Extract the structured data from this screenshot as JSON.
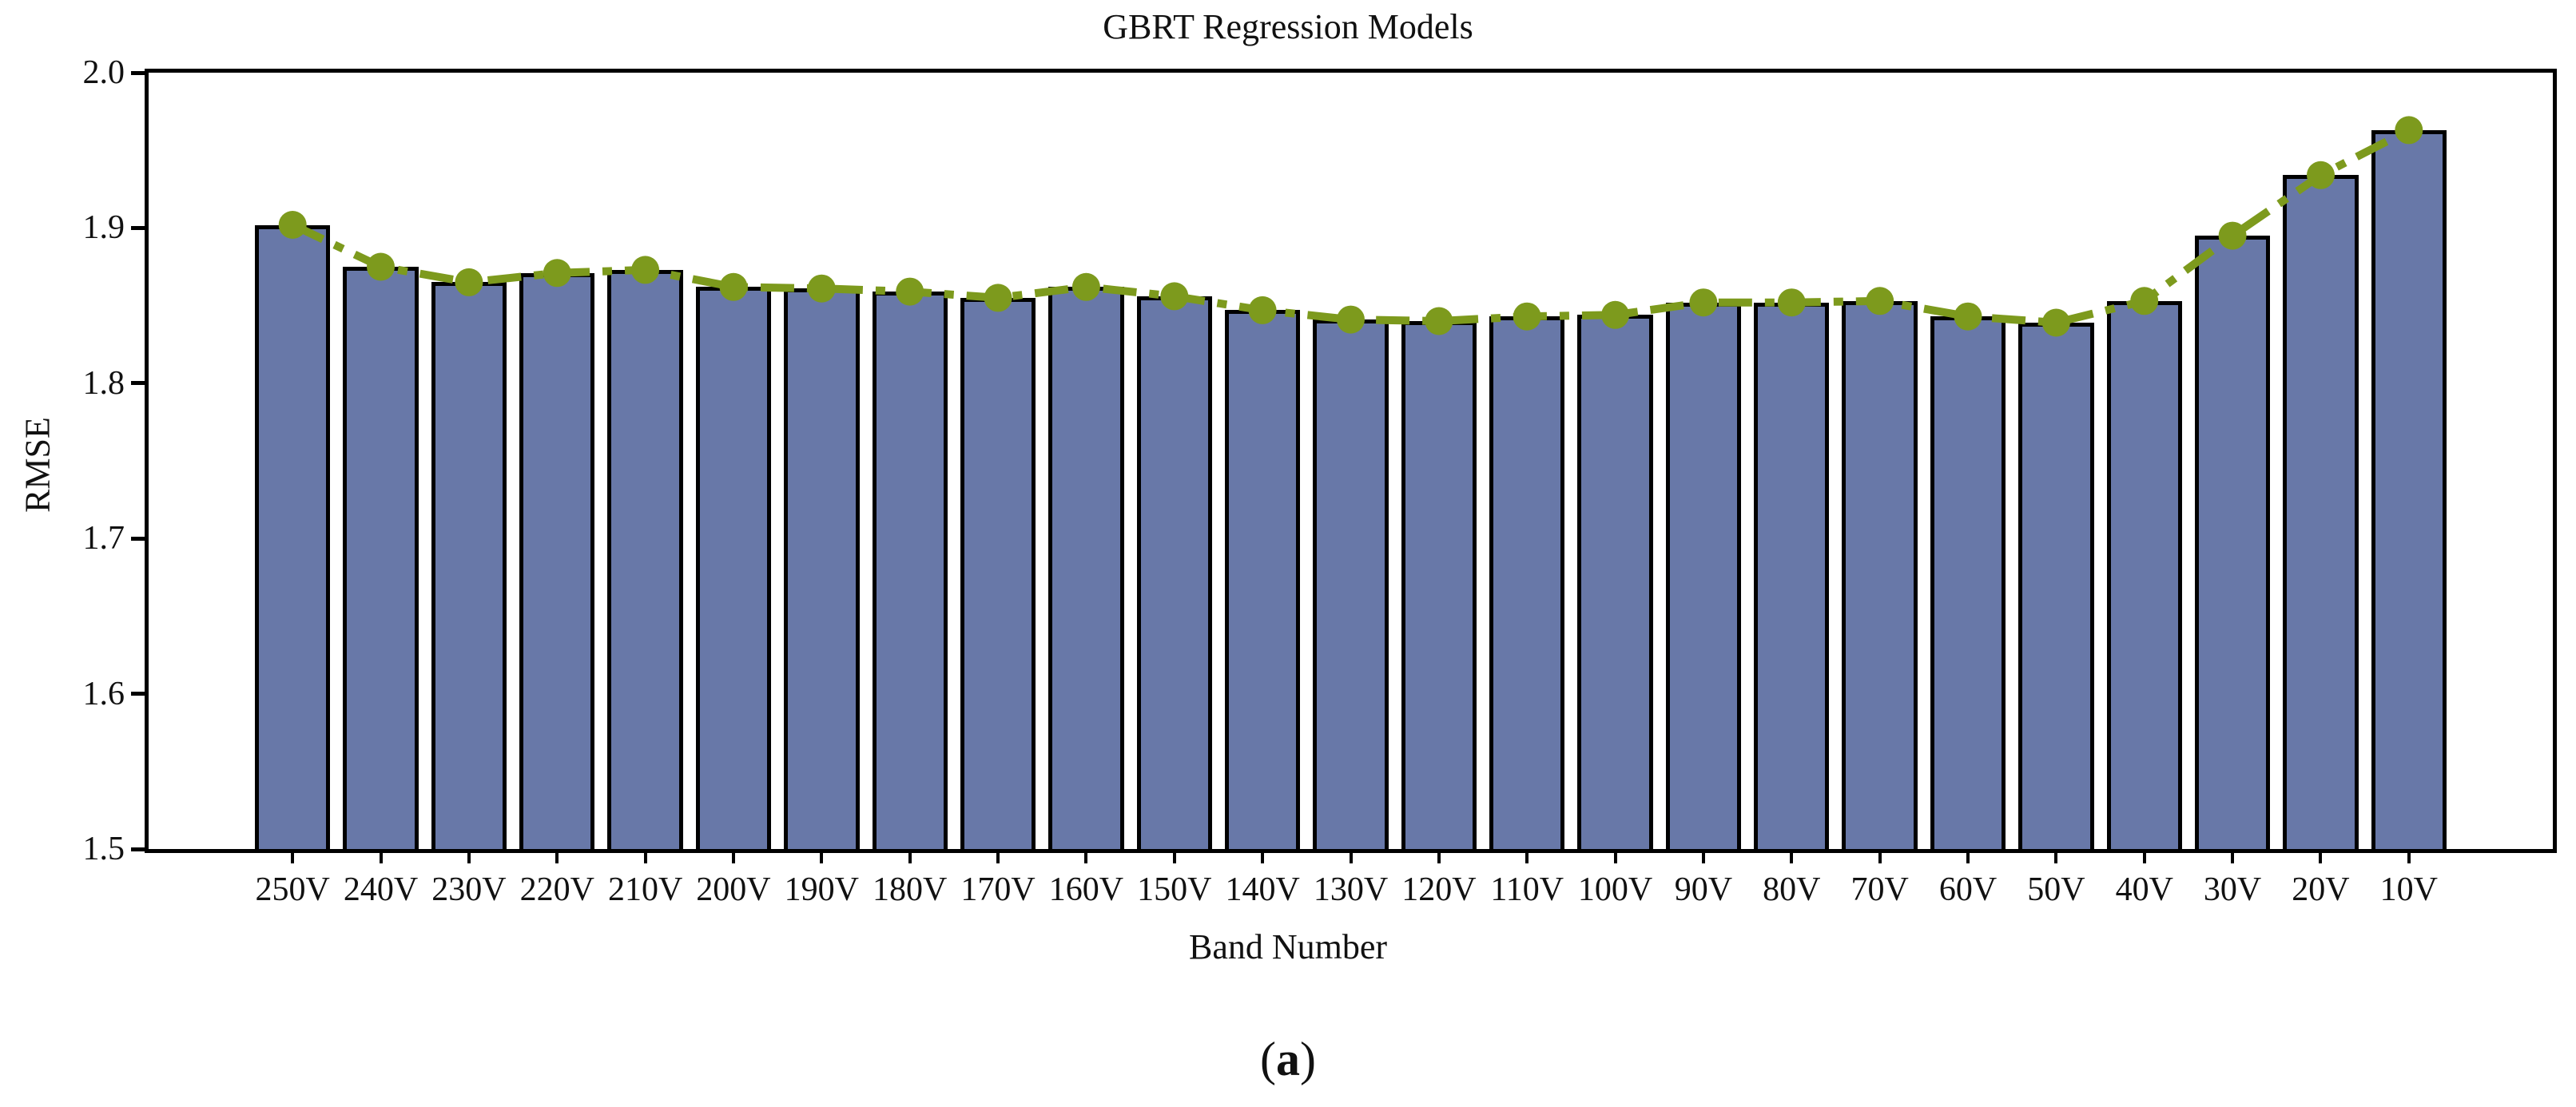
{
  "chart_data": {
    "type": "bar",
    "title": "GBRT Regression Models",
    "xlabel": "Band Number",
    "ylabel": "RMSE",
    "ylim": [
      1.5,
      2.0
    ],
    "yticks": [
      2.0,
      1.9,
      1.8,
      1.7,
      1.6,
      1.5
    ],
    "grid": false,
    "legend": "none",
    "line_overlay": true,
    "line_style": "dash-dot",
    "marker": "circle",
    "colors": {
      "bar_fill": "#6878A8",
      "bar_edge": "#000000",
      "line": "#7D9A1D",
      "axis": "#000000"
    },
    "categories": [
      "250V",
      "240V",
      "230V",
      "220V",
      "210V",
      "200V",
      "190V",
      "180V",
      "170V",
      "160V",
      "150V",
      "140V",
      "130V",
      "120V",
      "110V",
      "100V",
      "90V",
      "80V",
      "70V",
      "60V",
      "50V",
      "40V",
      "30V",
      "20V",
      "10V"
    ],
    "values": [
      1.902,
      1.875,
      1.865,
      1.871,
      1.873,
      1.862,
      1.861,
      1.859,
      1.855,
      1.862,
      1.856,
      1.847,
      1.841,
      1.84,
      1.843,
      1.844,
      1.852,
      1.852,
      1.853,
      1.843,
      1.839,
      1.853,
      1.895,
      1.934,
      1.963
    ]
  },
  "caption": {
    "open": "(",
    "letter": "a",
    "close": ")"
  }
}
